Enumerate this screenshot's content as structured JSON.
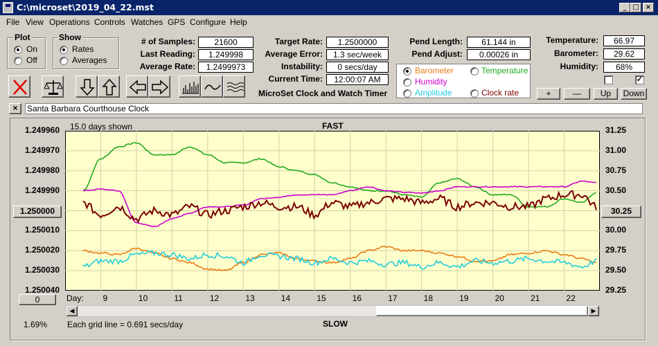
{
  "window": {
    "title": "C:\\microset\\2019_04_22.mst",
    "controls": [
      "_",
      "□",
      "×"
    ]
  },
  "menu": [
    "File",
    "View",
    "Operations",
    "Controls",
    "Watches",
    "GPS",
    "Configure",
    "Help"
  ],
  "plot_group": {
    "title": "Plot",
    "options": [
      "On",
      "Off"
    ],
    "selected": "On"
  },
  "show_group": {
    "title": "Show",
    "options": [
      "Rates",
      "Averages"
    ],
    "selected": "Rates"
  },
  "stats": {
    "samples_label": "# of Samples:",
    "samples": "21600",
    "last_reading_label": "Last Reading:",
    "last_reading": "1.249998",
    "average_rate_label": "Average Rate:",
    "average_rate": "1.2499973",
    "target_rate_label": "Target Rate:",
    "target_rate": "1.2500000",
    "average_error_label": "Average Error:",
    "average_error": "1.3 sec/week",
    "instability_label": "Instability:",
    "instability": "0 secs/day",
    "current_time_label": "Current Time:",
    "current_time": "12:00:07 AM",
    "pend_length_label": "Pend Length:",
    "pend_length": "61.144 in",
    "pend_adjust_label": "Pend Adjust:",
    "pend_adjust": "0.00026 in",
    "temperature_label": "Temperature:",
    "temperature": "66.97",
    "barometer_label": "Barometer:",
    "barometer": "29.62",
    "humidity_label": "Humidity:",
    "humidity": "68%"
  },
  "app_caption": "MicroSet Clock and Watch Timer",
  "sensor_select": {
    "options": [
      {
        "label": "Barometer",
        "color": "#e87c14",
        "selected": true
      },
      {
        "label": "Temperature",
        "color": "#22aa22",
        "selected": false
      },
      {
        "label": "Humidity",
        "color": "#cc00cc",
        "selected": false
      },
      {
        "label": "Amplitude",
        "color": "#22ccdd",
        "selected": false
      },
      {
        "label": "Clock rate",
        "color": "#7a0000",
        "selected": false
      }
    ]
  },
  "checkboxes": [
    "",
    "✓"
  ],
  "nav_buttons": [
    "+",
    "—",
    "Up",
    "Down"
  ],
  "clock_name": "Santa Barbara Courthouse Clock",
  "close_x": "×",
  "toolbar_icons": [
    "reject-icon",
    "balance-icon",
    "arrow-down-icon",
    "arrow-up-icon",
    "arrow-left-icon",
    "arrow-right-icon",
    "bar-plot-icon",
    "wave-plot-icon",
    "waves-plot-icon"
  ],
  "chart": {
    "days_shown": "15.0 days shown",
    "top_label": "FAST",
    "bottom_label": "SLOW",
    "grid_note": "Each grid line = 0.691 secs/day",
    "percent": "1.69%",
    "day_prefix": "Day:",
    "left_button": "1.250000",
    "right_button": "30.25",
    "zero_button": "0"
  },
  "chart_data": {
    "type": "line",
    "x": [
      8.5,
      9,
      9.5,
      10,
      10.5,
      11,
      11.5,
      12,
      12.5,
      13,
      13.5,
      14,
      14.5,
      15,
      15.5,
      16,
      16.5,
      17,
      17.5,
      18,
      18.5,
      19,
      19.5,
      20,
      20.5,
      21,
      21.5,
      22,
      22.5,
      22.9
    ],
    "xlabel": "Day:",
    "xticks": [
      "9",
      "10",
      "11",
      "12",
      "13",
      "14",
      "15",
      "16",
      "17",
      "18",
      "19",
      "20",
      "21",
      "22"
    ],
    "y_left": {
      "ticks": [
        "1.249960",
        "1.249970",
        "1.249980",
        "1.249990",
        "1.250000",
        "1.250010",
        "1.250020",
        "1.250030",
        "1.250040"
      ],
      "ylim": [
        1.24996,
        1.25004
      ],
      "inverted": true
    },
    "y_right": {
      "ticks": [
        "31.25",
        "31.00",
        "30.75",
        "30.50",
        "30.25",
        "30.00",
        "29.75",
        "29.50",
        "29.25"
      ],
      "ylim": [
        29.25,
        31.25
      ]
    },
    "series": [
      {
        "name": "Temperature",
        "color": "#22aa22",
        "values": [
          30.5,
          30.9,
          31.05,
          31.1,
          30.95,
          30.95,
          31.05,
          30.95,
          30.85,
          30.85,
          30.9,
          30.8,
          30.75,
          30.7,
          30.6,
          30.55,
          30.5,
          30.5,
          30.45,
          30.42,
          30.6,
          30.65,
          30.55,
          30.45,
          30.45,
          30.3,
          30.3,
          30.4,
          30.35,
          30.48
        ]
      },
      {
        "name": "Humidity",
        "color": "#cc00cc",
        "values": [
          30.5,
          30.52,
          30.5,
          30.1,
          30.05,
          30.15,
          30.22,
          30.3,
          30.3,
          30.32,
          30.4,
          30.42,
          30.45,
          30.45,
          30.45,
          30.5,
          30.55,
          30.5,
          30.48,
          30.47,
          30.5,
          30.55,
          30.55,
          30.55,
          30.55,
          30.55,
          30.55,
          30.55,
          30.62,
          30.6
        ]
      },
      {
        "name": "Clock rate",
        "color": "#7a0000",
        "values": [
          30.35,
          30.2,
          30.3,
          30.15,
          30.25,
          30.2,
          30.3,
          30.2,
          30.25,
          30.3,
          30.35,
          30.3,
          30.3,
          30.2,
          30.35,
          30.3,
          30.35,
          30.4,
          30.4,
          30.35,
          30.4,
          30.3,
          30.35,
          30.35,
          30.3,
          30.3,
          30.4,
          30.45,
          30.45,
          30.3
        ]
      },
      {
        "name": "Barometer",
        "color": "#e87c14",
        "values": [
          29.75,
          29.72,
          29.7,
          29.78,
          29.72,
          29.65,
          29.6,
          29.52,
          29.5,
          29.6,
          29.7,
          29.72,
          29.65,
          29.62,
          29.6,
          29.65,
          29.75,
          29.8,
          29.75,
          29.75,
          29.72,
          29.68,
          29.62,
          29.62,
          29.7,
          29.72,
          29.75,
          29.7,
          29.65,
          29.6
        ]
      },
      {
        "name": "Amplitude",
        "color": "#22ccdd",
        "values": [
          29.55,
          29.62,
          29.62,
          29.7,
          29.72,
          29.7,
          29.65,
          29.7,
          29.68,
          29.6,
          29.7,
          29.68,
          29.65,
          29.6,
          29.65,
          29.6,
          29.62,
          29.58,
          29.6,
          29.55,
          29.6,
          29.55,
          29.62,
          29.6,
          29.62,
          29.65,
          29.62,
          29.6,
          29.55,
          29.62
        ]
      }
    ]
  }
}
